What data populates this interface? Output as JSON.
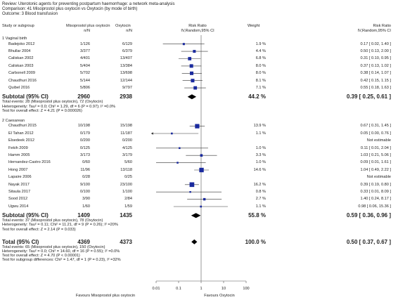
{
  "header": {
    "review": "Review:  Uterotonic agents for preventing postpartum haemorrhage: a network meta-analysis",
    "comparison": "Comparison:  41 Misoprostol plus oxytocin vs Oxytocin (by mode of birth)",
    "outcome": "Outcome:  3 Blood transfusion"
  },
  "columns": {
    "study": "Study or subgroup",
    "exp_name": "Misoprostol plus oxytocin",
    "exp_sub": "n/N",
    "ctl_name": "Oxytocin",
    "ctl_sub": "n/N",
    "rr_name": "Risk Ratio",
    "rr_sub": "IV,Random,95% CI",
    "weight": "Weight",
    "rr2_name": "Risk Ratio",
    "rr2_sub": "IV,Random,95% CI"
  },
  "groups": [
    {
      "title": "1 Vaginal birth",
      "studies": [
        {
          "name": "Badejoko 2012",
          "exp": "1/126",
          "ctl": "6/129",
          "weight": "1.9 %",
          "ci": "0.17 [ 0.02, 1.40 ]"
        },
        {
          "name": "Bhullar 2004",
          "exp": "3/377",
          "ctl": "6/379",
          "weight": "4.4 %",
          "ci": "0.50 [ 0.13, 2.00 ]"
        },
        {
          "name": "Caliskan 2002",
          "exp": "4/401",
          "ctl": "13/407",
          "weight": "6.8 %",
          "ci": "0.31 [ 0.10, 0.95 ]"
        },
        {
          "name": "Caliskan 2003",
          "exp": "5/404",
          "ctl": "13/384",
          "weight": "8.0 %",
          "ci": "0.37 [ 0.13, 1.02 ]"
        },
        {
          "name": "Carbonell 2009",
          "exp": "5/702",
          "ctl": "13/698",
          "weight": "8.0 %",
          "ci": "0.38 [ 0.14, 1.07 ]"
        },
        {
          "name": "Chaudhuri 2016",
          "exp": "5/144",
          "ctl": "12/144",
          "weight": "8.1 %",
          "ci": "0.42 [ 0.15, 1.15 ]"
        },
        {
          "name": "Quibel 2016",
          "exp": "5/806",
          "ctl": "9/797",
          "weight": "7.1 %",
          "ci": "0.55 [ 0.18, 1.63 ]"
        }
      ],
      "subtotal": {
        "label": "Subtotal (95% CI)",
        "exp": "2960",
        "ctl": "2938",
        "weight": "44.2 %",
        "ci": "0.39 [ 0.25, 0.61 ]"
      },
      "notes": [
        "Total events: 28 (Misoprostol plus oxytocin), 72 (Oxytocin)",
        "Heterogeneity: Tau² = 0.0; Chi² = 1.29, df = 6 (P = 0.97); I² =0.0%",
        "Test for overall effect: Z = 4.21 (P = 0.000026)"
      ]
    },
    {
      "title": "2 Caesarean",
      "studies": [
        {
          "name": "Chaudhuri 2015",
          "exp": "10/198",
          "ctl": "15/198",
          "weight": "13.9 %",
          "ci": "0.67 [ 0.31, 1.45 ]"
        },
        {
          "name": "El Tahan 2012",
          "exp": "0/179",
          "ctl": "11/187",
          "weight": "1.1 %",
          "ci": "0.05 [ 0.00, 0.76 ]"
        },
        {
          "name": "Elsedeek 2012",
          "exp": "0/200",
          "ctl": "0/200",
          "weight": "",
          "ci": "Not estimable"
        },
        {
          "name": "Fekih 2009",
          "exp": "0/125",
          "ctl": "4/125",
          "weight": "1.0 %",
          "ci": "0.11 [ 0.01, 2.04 ]"
        },
        {
          "name": "Hamm 2005",
          "exp": "3/173",
          "ctl": "3/179",
          "weight": "3.3 %",
          "ci": "1.03 [ 0.21, 5.06 ]"
        },
        {
          "name": "Hernandez-Castro 2016",
          "exp": "0/60",
          "ctl": "5/60",
          "weight": "1.0 %",
          "ci": "0.09 [ 0.01, 1.61 ]"
        },
        {
          "name": "Hong 2007",
          "exp": "11/96",
          "ctl": "13/118",
          "weight": "14.6 %",
          "ci": "1.04 [ 0.49, 2.22 ]"
        },
        {
          "name": "Lapaire 2006",
          "exp": "0/28",
          "ctl": "0/25",
          "weight": "",
          "ci": "Not estimable"
        },
        {
          "name": "Nayak 2017",
          "exp": "9/100",
          "ctl": "23/100",
          "weight": "16.2 %",
          "ci": "0.39 [ 0.19, 0.80 ]"
        },
        {
          "name": "Sitaula 2017",
          "exp": "0/100",
          "ctl": "1/100",
          "weight": "0.8 %",
          "ci": "0.33 [ 0.01, 8.09 ]"
        },
        {
          "name": "Sood 2012",
          "exp": "3/90",
          "ctl": "2/84",
          "weight": "2.7 %",
          "ci": "1.40 [ 0.24, 8.17 ]"
        },
        {
          "name": "Ugwu 2014",
          "exp": "1/60",
          "ctl": "1/59",
          "weight": "1.1 %",
          "ci": "0.98 [ 0.06, 15.36 ]"
        }
      ],
      "subtotal": {
        "label": "Subtotal (95% CI)",
        "exp": "1409",
        "ctl": "1435",
        "weight": "55.8 %",
        "ci": "0.59 [ 0.36, 0.96 ]"
      },
      "notes": [
        "Total events: 37 (Misoprostol plus oxytocin), 78 (Oxytocin)",
        "Heterogeneity: Tau² = 0.11; Chi² = 11.21, df = 9 (P = 0.26); I² =20%",
        "Test for overall effect: Z = 2.14 (P = 0.033)"
      ]
    }
  ],
  "total": {
    "label": "Total (95% CI)",
    "exp": "4369",
    "ctl": "4373",
    "weight": "100.0 %",
    "ci": "0.50 [ 0.37, 0.67 ]"
  },
  "total_notes": [
    "Total events: 65 (Misoprostol plus oxytocin), 150 (Oxytocin)",
    "Heterogeneity: Tau² = 0.0; Chi² = 14.60, df = 16 (P = 0.55); I² =0.0%",
    "Test for overall effect: Z = 4.70 (P < 0.00001)",
    "Test for subgroup differences: Chi² = 1.47, df = 1 (P = 0.23), I² =32%"
  ],
  "axis": {
    "favours_left": "Favours Misoprostol plus oxytocin",
    "favours_right": "Favours Oxytocin"
  },
  "chart_data": {
    "type": "forest",
    "scale": "log",
    "xlim": [
      0.01,
      100
    ],
    "ticks": [
      0.01,
      0.1,
      1,
      10,
      100
    ],
    "tick_labels": [
      "0.01",
      "0.1",
      "1",
      "10",
      "100"
    ],
    "marker_color": "#1a2a9e",
    "studies": [
      {
        "name": "Badejoko 2012",
        "rr": 0.17,
        "lo": 0.02,
        "hi": 1.4,
        "weight": 1.9
      },
      {
        "name": "Bhullar 2004",
        "rr": 0.5,
        "lo": 0.13,
        "hi": 2.0,
        "weight": 4.4
      },
      {
        "name": "Caliskan 2002",
        "rr": 0.31,
        "lo": 0.1,
        "hi": 0.95,
        "weight": 6.8
      },
      {
        "name": "Caliskan 2003",
        "rr": 0.37,
        "lo": 0.13,
        "hi": 1.02,
        "weight": 8.0
      },
      {
        "name": "Carbonell 2009",
        "rr": 0.38,
        "lo": 0.14,
        "hi": 1.07,
        "weight": 8.0
      },
      {
        "name": "Chaudhuri 2016",
        "rr": 0.42,
        "lo": 0.15,
        "hi": 1.15,
        "weight": 8.1
      },
      {
        "name": "Quibel 2016",
        "rr": 0.55,
        "lo": 0.18,
        "hi": 1.63,
        "weight": 7.1
      },
      {
        "name": "Chaudhuri 2015",
        "rr": 0.67,
        "lo": 0.31,
        "hi": 1.45,
        "weight": 13.9
      },
      {
        "name": "El Tahan 2012",
        "rr": 0.05,
        "lo": 0.0,
        "hi": 0.76,
        "weight": 1.1
      },
      {
        "name": "Elsedeek 2012",
        "rr": null,
        "lo": null,
        "hi": null,
        "weight": null
      },
      {
        "name": "Fekih 2009",
        "rr": 0.11,
        "lo": 0.01,
        "hi": 2.04,
        "weight": 1.0
      },
      {
        "name": "Hamm 2005",
        "rr": 1.03,
        "lo": 0.21,
        "hi": 5.06,
        "weight": 3.3
      },
      {
        "name": "Hernandez-Castro 2016",
        "rr": 0.09,
        "lo": 0.01,
        "hi": 1.61,
        "weight": 1.0
      },
      {
        "name": "Hong 2007",
        "rr": 1.04,
        "lo": 0.49,
        "hi": 2.22,
        "weight": 14.6
      },
      {
        "name": "Lapaire 2006",
        "rr": null,
        "lo": null,
        "hi": null,
        "weight": null
      },
      {
        "name": "Nayak 2017",
        "rr": 0.39,
        "lo": 0.19,
        "hi": 0.8,
        "weight": 16.2
      },
      {
        "name": "Sitaula 2017",
        "rr": 0.33,
        "lo": 0.01,
        "hi": 8.09,
        "weight": 0.8
      },
      {
        "name": "Sood 2012",
        "rr": 1.4,
        "lo": 0.24,
        "hi": 8.17,
        "weight": 2.7
      },
      {
        "name": "Ugwu 2014",
        "rr": 0.98,
        "lo": 0.06,
        "hi": 15.36,
        "weight": 1.1
      }
    ],
    "diamonds": [
      {
        "name": "Subtotal Vaginal birth",
        "rr": 0.39,
        "lo": 0.25,
        "hi": 0.61
      },
      {
        "name": "Subtotal Caesarean",
        "rr": 0.59,
        "lo": 0.36,
        "hi": 0.96
      },
      {
        "name": "Total",
        "rr": 0.5,
        "lo": 0.37,
        "hi": 0.67
      }
    ]
  }
}
